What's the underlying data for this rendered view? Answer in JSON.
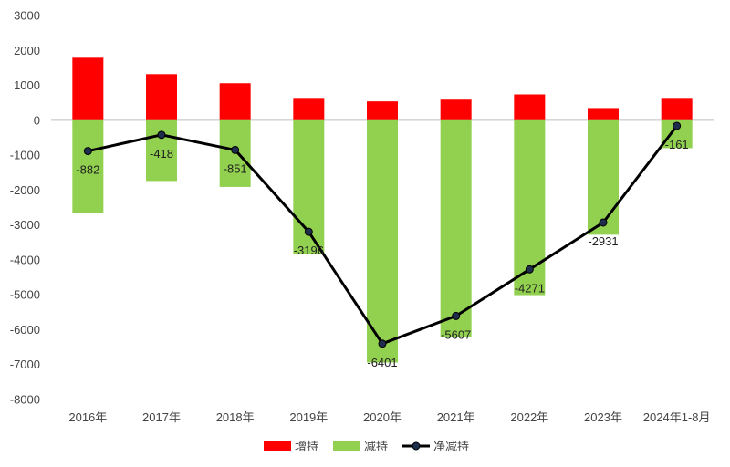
{
  "chart_data": {
    "type": "bar",
    "categories": [
      "2016年",
      "2017年",
      "2018年",
      "2019年",
      "2020年",
      "2021年",
      "2022年",
      "2023年",
      "2024年1-8月"
    ],
    "ylim": [
      -8000,
      3000
    ],
    "yticks": [
      3000,
      2000,
      1000,
      0,
      -1000,
      -2000,
      -3000,
      -4000,
      -5000,
      -6000,
      -7000,
      -8000
    ],
    "grid": false,
    "legend_position": "bottom",
    "series": [
      {
        "name": "增持",
        "type": "bar",
        "color": "#ff0000",
        "values": [
          1790,
          1320,
          1060,
          640,
          540,
          590,
          740,
          350,
          640
        ]
      },
      {
        "name": "减持",
        "type": "bar",
        "color": "#92d050",
        "values": [
          -2670,
          -1740,
          -1910,
          -3830,
          -6940,
          -6200,
          -5010,
          -3280,
          -800
        ]
      },
      {
        "name": "净减持",
        "type": "line",
        "color": "#000000",
        "marker_color": "#1f2d4d",
        "values": [
          -882,
          -418,
          -851,
          -3196,
          -6401,
          -5607,
          -4271,
          -2931,
          -161
        ]
      }
    ],
    "data_labels": [
      "-882",
      "-418",
      "-851",
      "-3196",
      "-6401",
      "-5607",
      "-4271",
      "-2931",
      "-161"
    ]
  }
}
